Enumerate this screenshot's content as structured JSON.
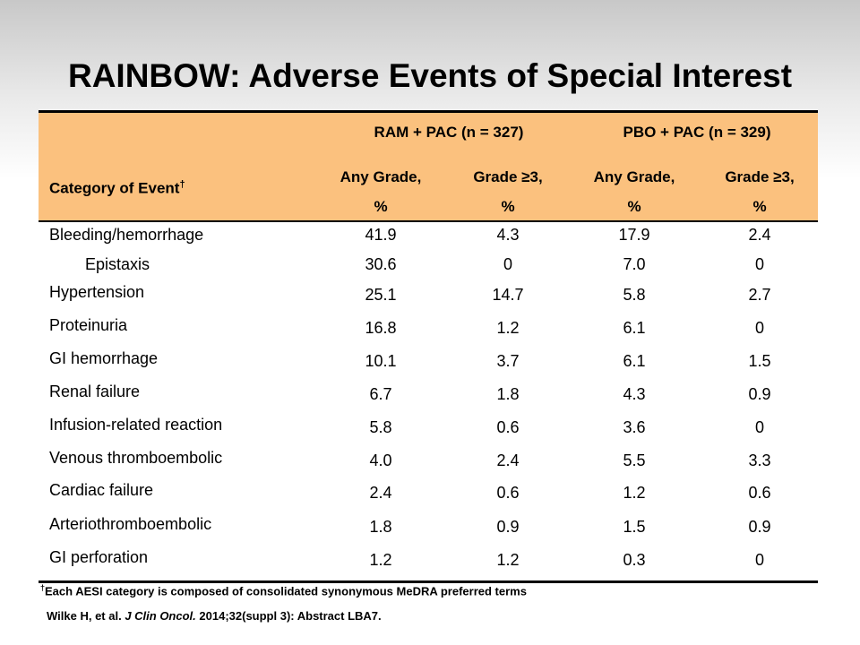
{
  "title": "RAINBOW: Adverse Events of Special Interest",
  "table": {
    "group_headers": [
      "RAM + PAC (n = 327)",
      "PBO + PAC (n = 329)"
    ],
    "category_header": "Category of Event",
    "category_footnote_mark": "†",
    "column_headers": [
      {
        "line1": "Any Grade,",
        "line2": "%"
      },
      {
        "line1": "Grade ≥3,",
        "line2": "%"
      },
      {
        "line1": "Any Grade,",
        "line2": "%"
      },
      {
        "line1": "Grade ≥3,",
        "line2": "%"
      }
    ],
    "rows": [
      {
        "label": "Bleeding/hemorrhage",
        "indent": false,
        "values": [
          "41.9",
          "4.3",
          "17.9",
          "2.4"
        ]
      },
      {
        "label": "Epistaxis",
        "indent": true,
        "values": [
          "30.6",
          "0",
          "7.0",
          "0"
        ]
      },
      {
        "label": "Hypertension",
        "indent": false,
        "values": [
          "25.1",
          "14.7",
          "5.8",
          "2.7"
        ]
      },
      {
        "label": "Proteinuria",
        "indent": false,
        "values": [
          "16.8",
          "1.2",
          "6.1",
          "0"
        ]
      },
      {
        "label": "GI hemorrhage",
        "indent": false,
        "values": [
          "10.1",
          "3.7",
          "6.1",
          "1.5"
        ]
      },
      {
        "label": "Renal failure",
        "indent": false,
        "values": [
          "6.7",
          "1.8",
          "4.3",
          "0.9"
        ]
      },
      {
        "label": "Infusion-related reaction",
        "indent": false,
        "values": [
          "5.8",
          "0.6",
          "3.6",
          "0"
        ]
      },
      {
        "label": "Venous thromboembolic",
        "indent": false,
        "values": [
          "4.0",
          "2.4",
          "5.5",
          "3.3"
        ]
      },
      {
        "label": "Cardiac failure",
        "indent": false,
        "values": [
          "2.4",
          "0.6",
          "1.2",
          "0.6"
        ]
      },
      {
        "label": "Arteriothromboembolic",
        "indent": false,
        "values": [
          "1.8",
          "0.9",
          "1.5",
          "0.9"
        ]
      },
      {
        "label": "GI perforation",
        "indent": false,
        "values": [
          "1.2",
          "1.2",
          "0.3",
          "0"
        ]
      }
    ]
  },
  "footnote": {
    "mark": "†",
    "text": "Each  AESI category is composed of consolidated synonymous MeDRA preferred terms"
  },
  "citation": {
    "authors": "Wilke H, et al.",
    "journal": "J Clin Oncol.",
    "details": "2014;32(suppl 3): Abstract LBA7."
  },
  "colors": {
    "header_fill": "#fbc17e"
  }
}
